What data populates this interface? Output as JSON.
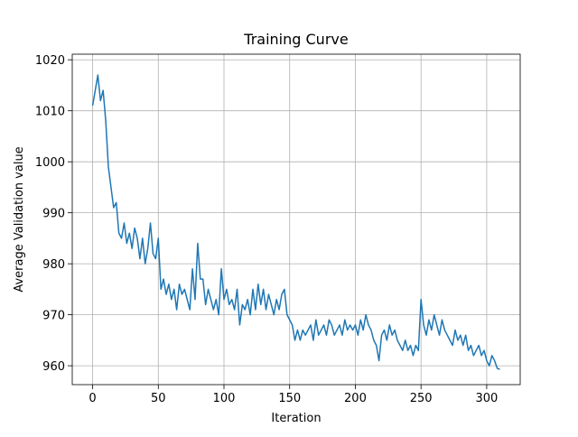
{
  "chart_data": {
    "type": "line",
    "title": "Training Curve",
    "xlabel": "Iteration",
    "ylabel": "Average Validation value",
    "x": [
      0,
      2,
      4,
      6,
      8,
      10,
      12,
      14,
      16,
      18,
      20,
      22,
      24,
      26,
      28,
      30,
      32,
      34,
      36,
      38,
      40,
      42,
      44,
      46,
      48,
      50,
      52,
      54,
      56,
      58,
      60,
      62,
      64,
      66,
      68,
      70,
      72,
      74,
      76,
      78,
      80,
      82,
      84,
      86,
      88,
      90,
      92,
      94,
      96,
      98,
      100,
      102,
      104,
      106,
      108,
      110,
      112,
      114,
      116,
      118,
      120,
      122,
      124,
      126,
      128,
      130,
      132,
      134,
      136,
      138,
      140,
      142,
      144,
      146,
      148,
      150,
      152,
      154,
      156,
      158,
      160,
      162,
      164,
      166,
      168,
      170,
      172,
      174,
      176,
      178,
      180,
      182,
      184,
      186,
      188,
      190,
      192,
      194,
      196,
      198,
      200,
      202,
      204,
      206,
      208,
      210,
      212,
      214,
      216,
      218,
      220,
      222,
      224,
      226,
      228,
      230,
      232,
      234,
      236,
      238,
      240,
      242,
      244,
      246,
      248,
      250,
      252,
      254,
      256,
      258,
      260,
      262,
      264,
      266,
      268,
      270,
      272,
      274,
      276,
      278,
      280,
      282,
      284,
      286,
      288,
      290,
      292,
      294,
      296,
      298,
      300,
      302,
      304,
      306,
      308,
      310
    ],
    "series": [
      {
        "name": "Average Validation value",
        "color": "#1f77b4",
        "values": [
          1011,
          1014,
          1017,
          1012,
          1014,
          1008,
          999,
          995,
          991,
          992,
          986,
          985,
          988,
          984,
          986,
          983,
          987,
          985,
          981,
          985,
          980,
          983,
          988,
          982,
          981,
          985,
          975,
          977,
          974,
          976,
          973,
          975,
          971,
          976,
          974,
          975,
          973,
          971,
          979,
          973,
          984,
          977,
          977,
          972,
          975,
          973,
          971,
          973,
          970,
          979,
          973,
          975,
          972,
          973,
          971,
          975,
          968,
          972,
          971,
          973,
          970,
          975,
          971,
          976,
          972,
          975,
          971,
          974,
          972,
          970,
          973,
          971,
          974,
          975,
          970,
          969,
          968,
          965,
          967,
          965,
          967,
          966,
          967,
          968,
          965,
          969,
          966,
          967,
          968,
          966,
          969,
          968,
          966,
          967,
          968,
          966,
          969,
          967,
          968,
          967,
          968,
          966,
          969,
          967,
          970,
          968,
          967,
          965,
          964,
          961,
          966,
          967,
          965,
          968,
          966,
          967,
          965,
          964,
          963,
          965,
          963,
          964,
          962,
          964,
          963,
          973,
          968,
          966,
          969,
          967,
          970,
          968,
          966,
          969,
          967,
          966,
          965,
          964,
          967,
          965,
          966,
          964,
          966,
          963,
          964,
          962,
          963,
          964,
          962,
          963,
          961,
          960,
          962,
          961,
          959.5,
          959.3
        ]
      }
    ],
    "xlim": [
      -15.5,
      325.5
    ],
    "ylim": [
      956.3,
      1021.1
    ],
    "xticks": [
      0,
      50,
      100,
      150,
      200,
      250,
      300
    ],
    "yticks": [
      960,
      970,
      980,
      990,
      1000,
      1010,
      1020
    ],
    "grid": true
  }
}
